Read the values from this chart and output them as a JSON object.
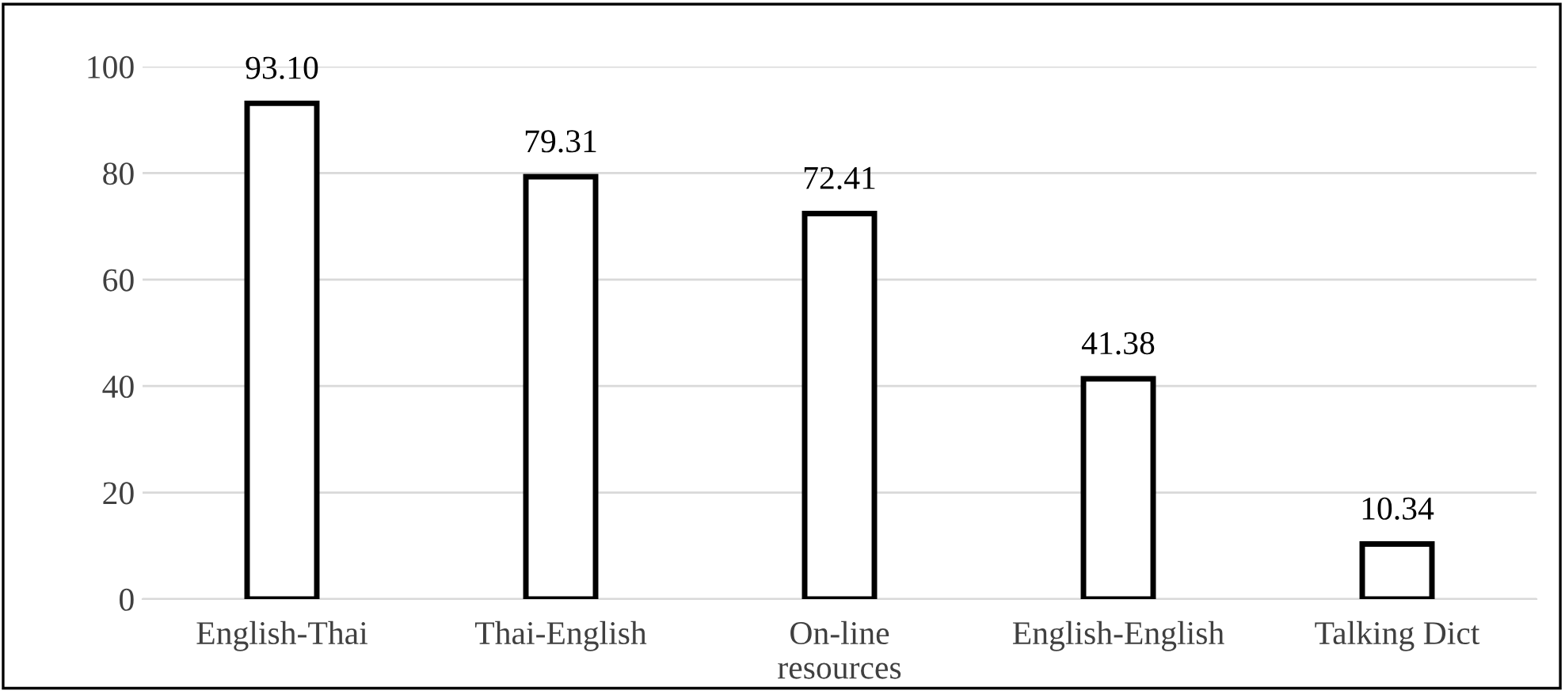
{
  "chart_data": {
    "type": "bar",
    "categories": [
      "English-Thai",
      "Thai-English",
      "On-line\nresources",
      "English-English",
      "Talking Dict"
    ],
    "values": [
      93.1,
      79.31,
      72.41,
      41.38,
      10.34
    ],
    "value_labels": [
      "93.10",
      "79.31",
      "72.41",
      "41.38",
      "10.34"
    ],
    "color": "#ffffff",
    "ylim": [
      0,
      100
    ],
    "yticks": [
      0,
      20,
      40,
      60,
      80,
      100
    ],
    "grid": "y"
  }
}
